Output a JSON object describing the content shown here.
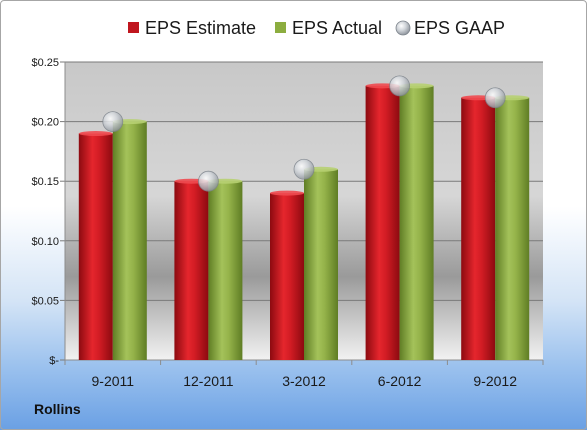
{
  "company": "Rollins",
  "colors": {
    "estimate": "#c0161e",
    "actual": "#8cad3f",
    "gaap": "#b9bec5"
  },
  "chart_data": {
    "type": "bar",
    "title": "",
    "xlabel": "",
    "ylabel": "",
    "categories": [
      "9-2011",
      "12-2011",
      "3-2012",
      "6-2012",
      "9-2012"
    ],
    "series": [
      {
        "name": "EPS Estimate",
        "kind": "bar",
        "values": [
          0.19,
          0.15,
          0.14,
          0.23,
          0.22
        ]
      },
      {
        "name": "EPS Actual",
        "kind": "bar",
        "values": [
          0.2,
          0.15,
          0.16,
          0.23,
          0.22
        ]
      },
      {
        "name": "EPS GAAP",
        "kind": "marker",
        "values": [
          0.2,
          0.15,
          0.16,
          0.23,
          0.22
        ]
      }
    ],
    "ylim": [
      0,
      0.25
    ],
    "yticks": [
      0,
      0.05,
      0.1,
      0.15,
      0.2,
      0.25
    ],
    "ytick_labels": [
      "$-",
      "$0.05",
      "$0.10",
      "$0.15",
      "$0.20",
      "$0.25"
    ],
    "grid": true,
    "legend": "top"
  }
}
